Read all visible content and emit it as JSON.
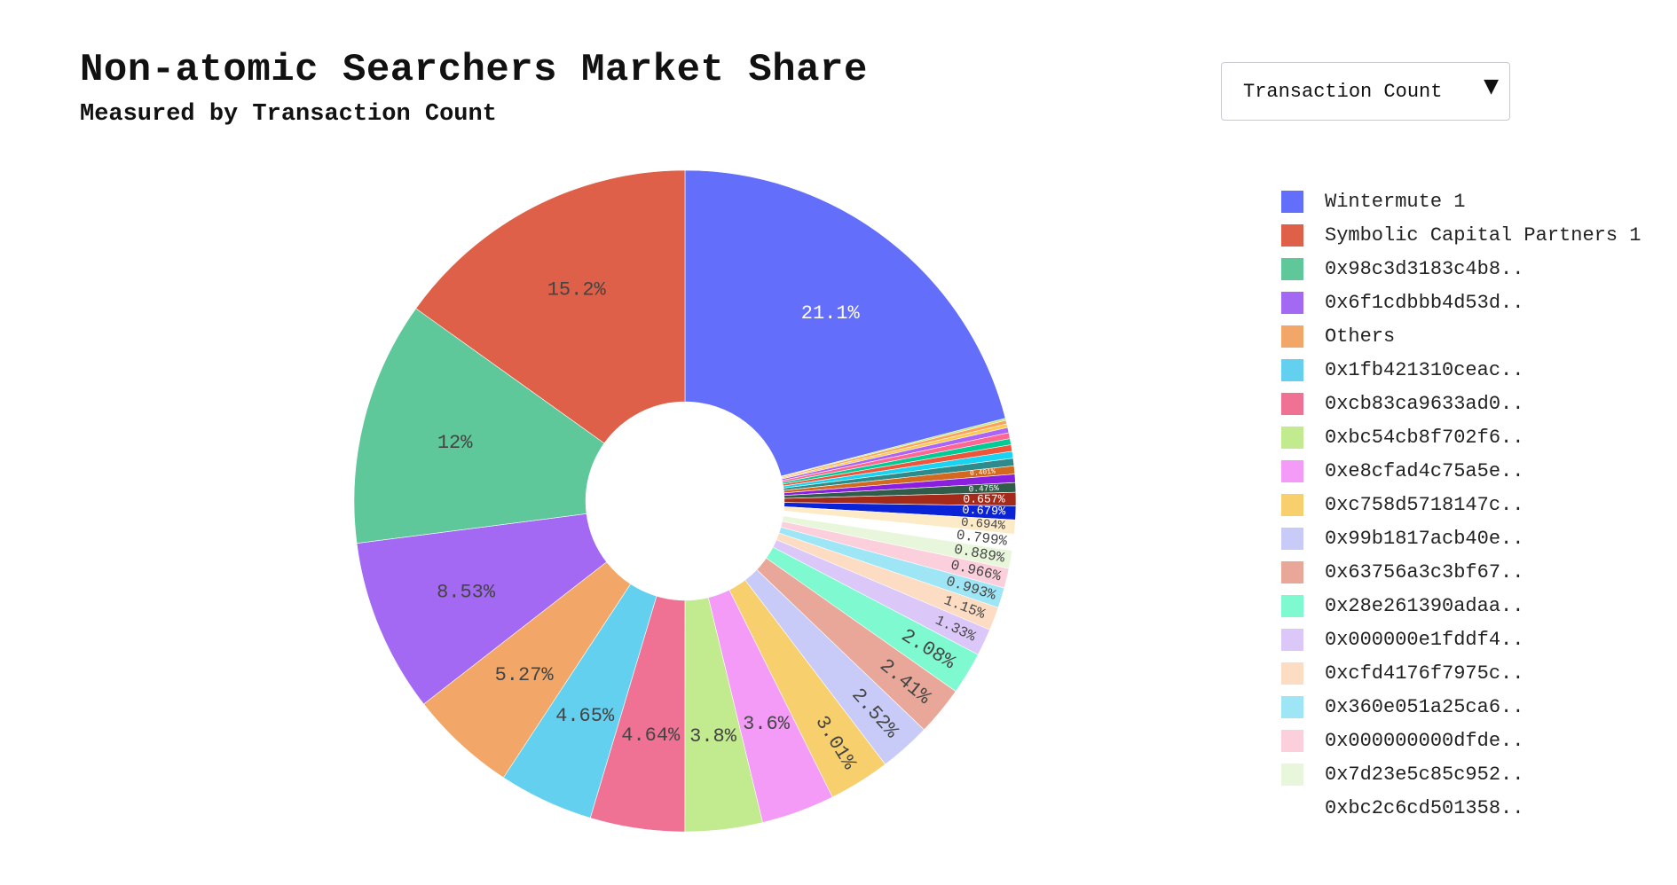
{
  "header": {
    "title": "Non-atomic Searchers Market Share",
    "subtitle": "Measured by Transaction Count"
  },
  "dropdown": {
    "selected": "Transaction Count",
    "arrow_glyph": "▼"
  },
  "chart_data": {
    "type": "pie",
    "hole": 0.3,
    "direction": "clockwise",
    "start": "top",
    "slices": [
      {
        "name": "Wintermute 1",
        "value": 21.1,
        "label": "21.1%",
        "color": "#636efa"
      },
      {
        "name": "",
        "value": 0.1,
        "label": "",
        "color": "#b6e880"
      },
      {
        "name": "",
        "value": 0.18,
        "label": "",
        "color": "#ffa15a"
      },
      {
        "name": "",
        "value": 0.18,
        "label": "",
        "color": "#fecb52"
      },
      {
        "name": "",
        "value": 0.26,
        "label": "",
        "color": "#ab63fa"
      },
      {
        "name": "",
        "value": 0.29,
        "label": "",
        "color": "#ff6692"
      },
      {
        "name": "",
        "value": 0.3,
        "label": "",
        "color": "#00cc96"
      },
      {
        "name": "",
        "value": 0.32,
        "label": "",
        "color": "#ef553b"
      },
      {
        "name": "",
        "value": 0.341,
        "label": "",
        "color": "#19d3f3"
      },
      {
        "name": "",
        "value": 0.37,
        "label": "",
        "color": "#2e8b8b"
      },
      {
        "name": "",
        "value": 0.401,
        "label": "0.401%",
        "color": "#d2691e"
      },
      {
        "name": "",
        "value": 0.41,
        "label": "",
        "color": "#8b1fe0"
      },
      {
        "name": "",
        "value": 0.475,
        "label": "0.475%",
        "color": "#2f5d4a"
      },
      {
        "name": "",
        "value": 0.657,
        "label": "0.657%",
        "color": "#a42a1a"
      },
      {
        "name": "",
        "value": 0.679,
        "label": "0.679%",
        "color": "#0a23d6"
      },
      {
        "name": "",
        "value": 0.694,
        "label": "0.694%",
        "color": "#fdebc8"
      },
      {
        "name": "0xbc2c6cd501358..",
        "value": 0.799,
        "label": "0.799%",
        "color": "#ffffff"
      },
      {
        "name": "0x7d23e5c85c952..",
        "value": 0.889,
        "label": "0.889%",
        "color": "#e8f6dc"
      },
      {
        "name": "0x000000000dfde..",
        "value": 0.966,
        "label": "0.966%",
        "color": "#fbd0dc"
      },
      {
        "name": "0x360e051a25ca6..",
        "value": 0.993,
        "label": "0.993%",
        "color": "#9ee6f6"
      },
      {
        "name": "0xcfd4176f7975c..",
        "value": 1.15,
        "label": "1.15%",
        "color": "#fcdcc2"
      },
      {
        "name": "0x000000e1fddf4..",
        "value": 1.33,
        "label": "1.33%",
        "color": "#dcc8f8"
      },
      {
        "name": "0x28e261390adaa..",
        "value": 2.08,
        "label": "2.08%",
        "color": "#7ffad0"
      },
      {
        "name": "0x63756a3c3bf67..",
        "value": 2.41,
        "label": "2.41%",
        "color": "#e9a799"
      },
      {
        "name": "0x99b1817acb40e..",
        "value": 2.52,
        "label": "2.52%",
        "color": "#c8cbf8"
      },
      {
        "name": "0xc758d5718147c..",
        "value": 3.01,
        "label": "3.01%",
        "color": "#f7cf6c"
      },
      {
        "name": "0xe8cfad4c75a5e..",
        "value": 3.6,
        "label": "3.6%",
        "color": "#f39bf6"
      },
      {
        "name": "0xbc54cb8f702f6..",
        "value": 3.8,
        "label": "3.8%",
        "color": "#c2ea8e"
      },
      {
        "name": "0xcb83ca9633ad0..",
        "value": 4.64,
        "label": "4.64%",
        "color": "#ef7295"
      },
      {
        "name": "0x1fb421310ceac..",
        "value": 4.65,
        "label": "4.65%",
        "color": "#63d0ef"
      },
      {
        "name": "Others",
        "value": 5.27,
        "label": "5.27%",
        "color": "#f2a768"
      },
      {
        "name": "0x6f1cdbbb4d53d..",
        "value": 8.53,
        "label": "8.53%",
        "color": "#a369f3"
      },
      {
        "name": "0x98c3d3183c4b8..",
        "value": 12.0,
        "label": "12%",
        "color": "#5ec89a"
      },
      {
        "name": "Symbolic Capital Partners 1",
        "value": 15.2,
        "label": "15.2%",
        "color": "#de6048"
      }
    ],
    "legend": {
      "placement": "right",
      "entries": [
        {
          "name": "Wintermute 1",
          "color": "#636efa"
        },
        {
          "name": "Symbolic Capital Partners 1",
          "color": "#de6048"
        },
        {
          "name": "0x98c3d3183c4b8..",
          "color": "#5ec89a"
        },
        {
          "name": "0x6f1cdbbb4d53d..",
          "color": "#a369f3"
        },
        {
          "name": "Others",
          "color": "#f2a768"
        },
        {
          "name": "0x1fb421310ceac..",
          "color": "#63d0ef"
        },
        {
          "name": "0xcb83ca9633ad0..",
          "color": "#ef7295"
        },
        {
          "name": "0xbc54cb8f702f6..",
          "color": "#c2ea8e"
        },
        {
          "name": "0xe8cfad4c75a5e..",
          "color": "#f39bf6"
        },
        {
          "name": "0xc758d5718147c..",
          "color": "#f7cf6c"
        },
        {
          "name": "0x99b1817acb40e..",
          "color": "#c8cbf8"
        },
        {
          "name": "0x63756a3c3bf67..",
          "color": "#e9a799"
        },
        {
          "name": "0x28e261390adaa..",
          "color": "#7ffad0"
        },
        {
          "name": "0x000000e1fddf4..",
          "color": "#dcc8f8"
        },
        {
          "name": "0xcfd4176f7975c..",
          "color": "#fcdcc2"
        },
        {
          "name": "0x360e051a25ca6..",
          "color": "#9ee6f6"
        },
        {
          "name": "0x000000000dfde..",
          "color": "#fbd0dc"
        },
        {
          "name": "0x7d23e5c85c952..",
          "color": "#e8f6dc"
        },
        {
          "name": "0xbc2c6cd501358..",
          "color": "#ffffff"
        }
      ]
    }
  }
}
